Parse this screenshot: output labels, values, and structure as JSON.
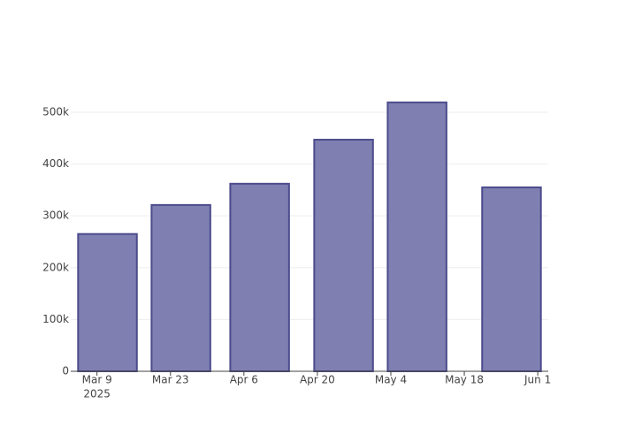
{
  "chart_data": {
    "type": "bar",
    "x": [
      "2025-03-11",
      "2025-03-25",
      "2025-04-09",
      "2025-04-25",
      "2025-05-09",
      "2025-05-27"
    ],
    "values": [
      265000,
      321000,
      362000,
      447000,
      519000,
      355000
    ],
    "color": "#7f7fb1",
    "line_color": "#4c4c8c",
    "xlim": [
      "2025-03-04",
      "2025-06-03"
    ],
    "xticks": [
      {
        "value": "2025-03-09",
        "label": "Mar 9"
      },
      {
        "value": "2025-03-23",
        "label": "Mar 23"
      },
      {
        "value": "2025-04-06",
        "label": "Apr 6"
      },
      {
        "value": "2025-04-20",
        "label": "Apr 20"
      },
      {
        "value": "2025-05-04",
        "label": "May 4"
      },
      {
        "value": "2025-05-18",
        "label": "May 18"
      },
      {
        "value": "2025-06-01",
        "label": "Jun 1"
      }
    ],
    "x_year": "2025",
    "ylim": [
      0,
      546000
    ],
    "yticks": [
      0,
      {
        "value": 100000,
        "label": "100k"
      },
      {
        "value": 200000,
        "label": "200k"
      },
      {
        "value": 300000,
        "label": "300k"
      },
      {
        "value": 400000,
        "label": "400k"
      },
      {
        "value": 500000,
        "label": "500k"
      }
    ],
    "grid": true
  }
}
